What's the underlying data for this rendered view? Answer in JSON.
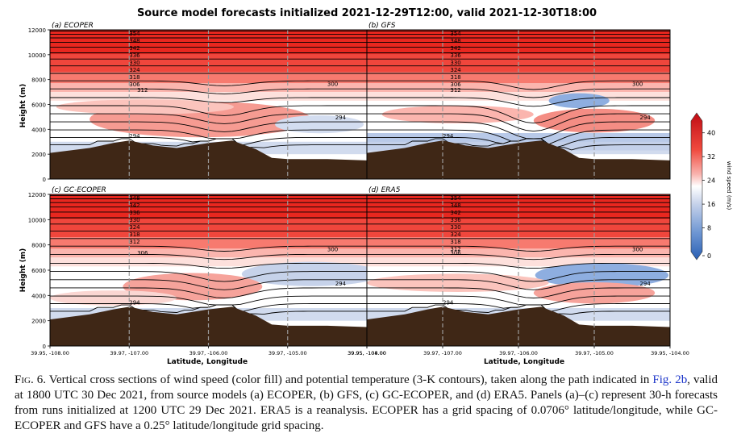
{
  "figure": {
    "title": "Source model forecasts initialized 2021-12-29T12:00, valid 2021-12-30T18:00",
    "ylabel": "Height (m)",
    "xlabel": "Latitude, Longitude",
    "colorbar_label": "wind speed (m/s)",
    "colorbar_ticks": [
      40,
      32,
      24,
      16,
      8,
      0
    ],
    "y_ticks": [
      0,
      2000,
      4000,
      6000,
      8000,
      10000,
      12000
    ],
    "x_ticks": [
      "39.95, -108.00",
      "39.97, -107.00",
      "39.97, -106.00",
      "39.97, -105.00",
      "39.95, -104.00"
    ],
    "panels": [
      {
        "label": "(a) ECOPER",
        "contour_labels": [
          "354",
          "348",
          "342",
          "336",
          "330",
          "324",
          "318",
          "306",
          "312",
          "300",
          "294"
        ]
      },
      {
        "label": "(b) GFS",
        "contour_labels": [
          "354",
          "348",
          "342",
          "336",
          "330",
          "324",
          "318",
          "306",
          "312",
          "300",
          "294"
        ]
      },
      {
        "label": "(c) GC-ECOPER",
        "contour_labels": [
          "348",
          "342",
          "336",
          "330",
          "324",
          "318",
          "312",
          "306",
          "300",
          "294"
        ]
      },
      {
        "label": "(d) ERA5",
        "contour_labels": [
          "354",
          "348",
          "342",
          "336",
          "330",
          "324",
          "318",
          "312",
          "306",
          "300",
          "294"
        ]
      }
    ],
    "colors": {
      "terrain": "#3f2716",
      "red": "#d7191c",
      "blue": "#2c6fbb"
    }
  },
  "chart_data": {
    "type": "heatmap",
    "title": "Source model forecasts initialized 2021-12-29T12:00, valid 2021-12-30T18:00",
    "xlabel": "Latitude, Longitude",
    "ylabel": "Height (m)",
    "ylim": [
      0,
      12000
    ],
    "colorbar_range": [
      0,
      44
    ],
    "terrain_profile": {
      "x": [
        -108.0,
        -107.5,
        -107.2,
        -107.0,
        -106.7,
        -106.4,
        -106.2,
        -106.0,
        -105.7,
        -105.4,
        -105.2,
        -105.0,
        -104.5,
        -104.0
      ],
      "height": [
        2100,
        2500,
        2900,
        3100,
        2700,
        2500,
        2700,
        2900,
        3100,
        2400,
        1700,
        1600,
        1600,
        1500
      ]
    }
  },
  "caption": {
    "fig": "Fig. 6.",
    "part1": " Vertical cross sections of wind speed (color fill) and potential temperature (3-K contours), taken along the path indicated in ",
    "link": "Fig. 2b",
    "part2": ", valid at 1800 UTC 30 Dec 2021, from source models (a) ECOPER, (b) GFS, (c) GC-ECOPER, and (d) ERA5. Panels (a)–(c) represent 30-h forecasts from runs initialized at 1200 UTC 29 Dec 2021. ERA5 is a reanalysis. ECOPER has a grid spacing of 0.0706° latitude/longitude, while GC-ECOPER and GFS have a 0.25° latitude/longitude grid spacing."
  }
}
